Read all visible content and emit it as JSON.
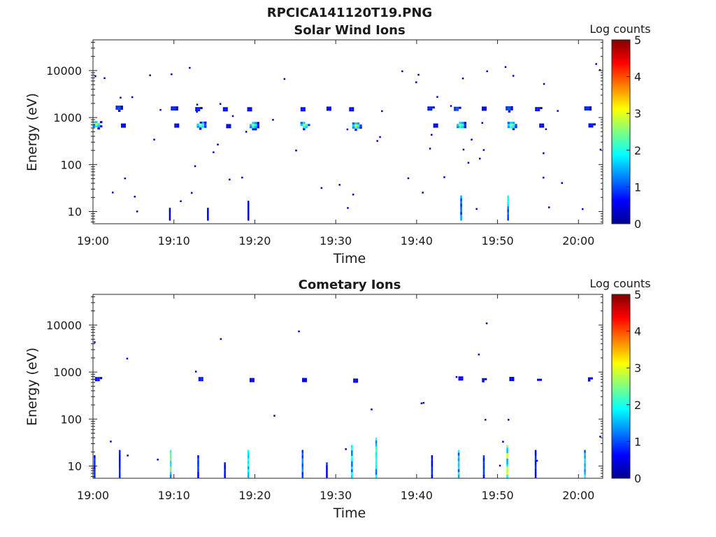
{
  "figure_title": "RPCICA141120T19.PNG",
  "colorbar_label": "Log counts",
  "colorbar_ticks": [
    "0",
    "1",
    "2",
    "3",
    "4",
    "5"
  ],
  "chart_data": [
    {
      "type": "heatmap",
      "title": "Solar Wind Ions",
      "xlabel": "Time",
      "ylabel": "Energy (eV)",
      "y_scale": "log",
      "ylim": [
        5.5,
        45000
      ],
      "xlim": [
        "19:00",
        "20:03"
      ],
      "x_ticks": [
        "19:00",
        "19:10",
        "19:20",
        "19:30",
        "19:40",
        "19:50",
        "20:00"
      ],
      "y_ticks": [
        "10",
        "100",
        "1000",
        "10000"
      ],
      "colorbar_range": [
        0,
        5
      ],
      "colormap": "jet",
      "clusters": [
        {
          "time_min": 0.3,
          "energy_ev": 750,
          "log_counts": 3.0
        },
        {
          "time_min": 3.0,
          "energy_ev": 1700,
          "log_counts": 1.5
        },
        {
          "time_min": 3.6,
          "energy_ev": 720,
          "log_counts": 1.0
        },
        {
          "time_min": 9.8,
          "energy_ev": 1650,
          "log_counts": 1.3
        },
        {
          "time_min": 10.2,
          "energy_ev": 720,
          "log_counts": 1.0
        },
        {
          "time_min": 13.2,
          "energy_ev": 730,
          "log_counts": 3.2
        },
        {
          "time_min": 12.8,
          "energy_ev": 1600,
          "log_counts": 1.2
        },
        {
          "time_min": 16.2,
          "energy_ev": 1600,
          "log_counts": 1.0
        },
        {
          "time_min": 16.6,
          "energy_ev": 700,
          "log_counts": 1.0
        },
        {
          "time_min": 19.7,
          "energy_ev": 720,
          "log_counts": 3.0
        },
        {
          "time_min": 19.2,
          "energy_ev": 1600,
          "log_counts": 1.0
        },
        {
          "time_min": 26.0,
          "energy_ev": 720,
          "log_counts": 3.1
        },
        {
          "time_min": 25.8,
          "energy_ev": 1600,
          "log_counts": 1.0
        },
        {
          "time_min": 29.0,
          "energy_ev": 1650,
          "log_counts": 1.0
        },
        {
          "time_min": 32.4,
          "energy_ev": 700,
          "log_counts": 3.1
        },
        {
          "time_min": 31.8,
          "energy_ev": 1600,
          "log_counts": 1.0
        },
        {
          "time_min": 41.5,
          "energy_ev": 1650,
          "log_counts": 1.2
        },
        {
          "time_min": 42.2,
          "energy_ev": 720,
          "log_counts": 1.0
        },
        {
          "time_min": 45.3,
          "energy_ev": 720,
          "log_counts": 3.1
        },
        {
          "time_min": 44.8,
          "energy_ev": 1600,
          "log_counts": 1.5
        },
        {
          "time_min": 48.2,
          "energy_ev": 1650,
          "log_counts": 1.0
        },
        {
          "time_min": 51.6,
          "energy_ev": 720,
          "log_counts": 3.2
        },
        {
          "time_min": 51.2,
          "energy_ev": 1650,
          "log_counts": 1.5
        },
        {
          "time_min": 54.8,
          "energy_ev": 1600,
          "log_counts": 1.2
        },
        {
          "time_min": 55.3,
          "energy_ev": 720,
          "log_counts": 1.0
        },
        {
          "time_min": 60.9,
          "energy_ev": 1650,
          "log_counts": 1.3
        },
        {
          "time_min": 61.4,
          "energy_ev": 720,
          "log_counts": 1.2
        }
      ],
      "low_energy_columns": [
        {
          "time_min": 9.5,
          "energy_range": [
            8,
            12
          ],
          "log_counts": 0.6
        },
        {
          "time_min": 14.2,
          "energy_range": [
            8,
            12
          ],
          "log_counts": 0.6
        },
        {
          "time_min": 19.2,
          "energy_range": [
            8,
            17
          ],
          "log_counts": 0.6
        },
        {
          "time_min": 45.5,
          "energy_range": [
            8,
            22
          ],
          "log_counts": 1.5
        },
        {
          "time_min": 51.3,
          "energy_range": [
            8,
            22
          ],
          "log_counts": 2.0
        }
      ]
    },
    {
      "type": "heatmap",
      "title": "Cometary Ions",
      "xlabel": "Time",
      "ylabel": "Energy (eV)",
      "y_scale": "log",
      "ylim": [
        5.5,
        45000
      ],
      "xlim": [
        "19:00",
        "20:03"
      ],
      "x_ticks": [
        "19:00",
        "19:10",
        "19:20",
        "19:30",
        "19:40",
        "19:50",
        "20:00"
      ],
      "y_ticks": [
        "10",
        "100",
        "1000",
        "10000"
      ],
      "colorbar_range": [
        0,
        5
      ],
      "colormap": "jet",
      "clusters": [
        {
          "time_min": 0.4,
          "energy_ev": 750,
          "log_counts": 1.2
        },
        {
          "time_min": 13.2,
          "energy_ev": 750,
          "log_counts": 1.2
        },
        {
          "time_min": 19.5,
          "energy_ev": 720,
          "log_counts": 1.0
        },
        {
          "time_min": 26.0,
          "energy_ev": 720,
          "log_counts": 1.1
        },
        {
          "time_min": 32.3,
          "energy_ev": 700,
          "log_counts": 1.0
        },
        {
          "time_min": 45.3,
          "energy_ev": 780,
          "log_counts": 1.0
        },
        {
          "time_min": 48.2,
          "energy_ev": 720,
          "log_counts": 0.8
        },
        {
          "time_min": 51.6,
          "energy_ev": 760,
          "log_counts": 1.0
        },
        {
          "time_min": 55.0,
          "energy_ev": 700,
          "log_counts": 0.8
        },
        {
          "time_min": 61.3,
          "energy_ev": 750,
          "log_counts": 0.8
        }
      ],
      "low_energy_columns": [
        {
          "time_min": 0.2,
          "energy_range": [
            7,
            17
          ],
          "log_counts": 1.0
        },
        {
          "time_min": 3.3,
          "energy_range": [
            7,
            22
          ],
          "log_counts": 1.0
        },
        {
          "time_min": 9.6,
          "energy_range": [
            7,
            22
          ],
          "log_counts": 2.5
        },
        {
          "time_min": 13.0,
          "energy_range": [
            7,
            17
          ],
          "log_counts": 1.0
        },
        {
          "time_min": 16.3,
          "energy_range": [
            7,
            12
          ],
          "log_counts": 0.8
        },
        {
          "time_min": 19.2,
          "energy_range": [
            7,
            22
          ],
          "log_counts": 2.3
        },
        {
          "time_min": 25.9,
          "energy_range": [
            7,
            22
          ],
          "log_counts": 1.5
        },
        {
          "time_min": 28.9,
          "energy_range": [
            7,
            12
          ],
          "log_counts": 1.0
        },
        {
          "time_min": 32.0,
          "energy_range": [
            7,
            28
          ],
          "log_counts": 2.2
        },
        {
          "time_min": 35.0,
          "energy_range": [
            7,
            40
          ],
          "log_counts": 2.4
        },
        {
          "time_min": 41.9,
          "energy_range": [
            7,
            17
          ],
          "log_counts": 1.0
        },
        {
          "time_min": 45.2,
          "energy_range": [
            7,
            22
          ],
          "log_counts": 2.0
        },
        {
          "time_min": 48.3,
          "energy_range": [
            7,
            17
          ],
          "log_counts": 1.0
        },
        {
          "time_min": 51.2,
          "energy_range": [
            7,
            28
          ],
          "log_counts": 3.0
        },
        {
          "time_min": 54.7,
          "energy_range": [
            7,
            22
          ],
          "log_counts": 1.2
        },
        {
          "time_min": 60.8,
          "energy_range": [
            7,
            22
          ],
          "log_counts": 2.0
        }
      ]
    }
  ]
}
